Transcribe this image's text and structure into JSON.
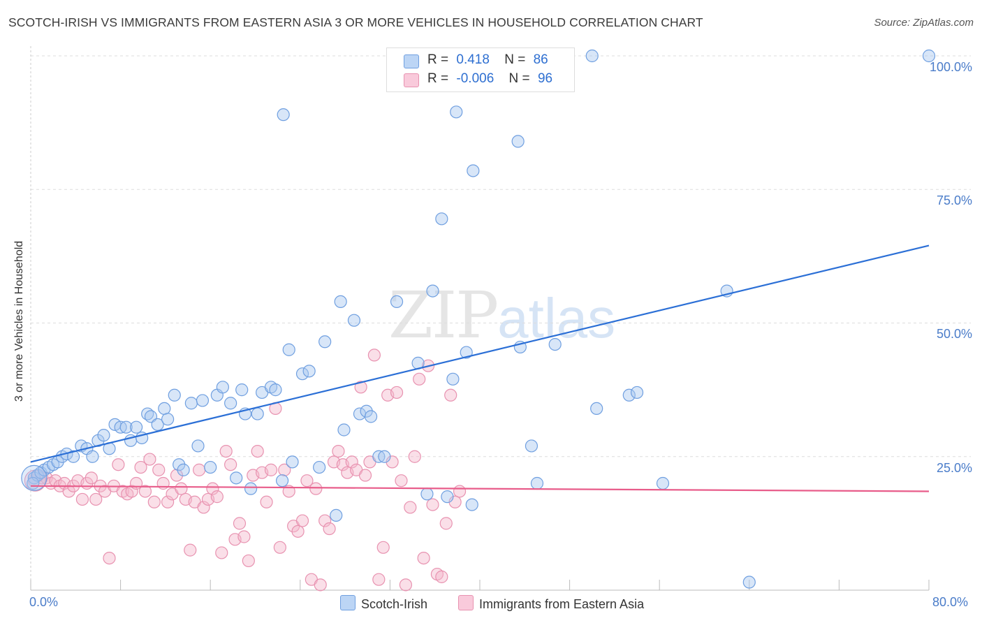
{
  "header": {
    "title": "SCOTCH-IRISH VS IMMIGRANTS FROM EASTERN ASIA 3 OR MORE VEHICLES IN HOUSEHOLD CORRELATION CHART",
    "source": "Source: ZipAtlas.com"
  },
  "watermark": {
    "zip": "ZIP",
    "atlas": "atlas"
  },
  "legend": {
    "rows": [
      {
        "r_label": "R =",
        "r_value": "0.418",
        "n_label": "N =",
        "n_value": "86"
      },
      {
        "r_label": "R =",
        "r_value": "-0.006",
        "n_label": "N =",
        "n_value": "96"
      }
    ]
  },
  "bottom_legend": {
    "series1": "Scotch-Irish",
    "series2": "Immigrants from Eastern Asia"
  },
  "colors": {
    "blue_fill": "#a9c8f0",
    "blue_stroke": "#6f9fe0",
    "blue_line": "#2b6fd6",
    "pink_fill": "#f5b8cc",
    "pink_stroke": "#e892b0",
    "pink_line": "#e85c8a",
    "grid": "#dddddd",
    "tick_text": "#4a7cc9"
  },
  "chart_data": {
    "type": "scatter",
    "title": "SCOTCH-IRISH VS IMMIGRANTS FROM EASTERN ASIA 3 OR MORE VEHICLES IN HOUSEHOLD CORRELATION CHART",
    "xlabel": "",
    "ylabel": "3 or more Vehicles in Household",
    "xlim": [
      0,
      80
    ],
    "ylim": [
      0,
      100
    ],
    "x_tick_labels": [
      "0.0%",
      "80.0%"
    ],
    "y_tick_labels": [
      "25.0%",
      "50.0%",
      "75.0%",
      "100.0%"
    ],
    "y_ticks": [
      25,
      50,
      75,
      100
    ],
    "grid": true,
    "legend_position": "top-center",
    "series": [
      {
        "name": "Scotch-Irish",
        "R": 0.418,
        "N": 86,
        "trend": [
          [
            0,
            24.0
          ],
          [
            80,
            64.5
          ]
        ],
        "points": [
          [
            0.3,
            21.0
          ],
          [
            0.6,
            21.5
          ],
          [
            0.9,
            22.0
          ],
          [
            1.2,
            22.5
          ],
          [
            1.6,
            23.0
          ],
          [
            2.0,
            23.5
          ],
          [
            2.4,
            24.0
          ],
          [
            2.8,
            25.0
          ],
          [
            3.2,
            25.5
          ],
          [
            3.8,
            25.0
          ],
          [
            4.5,
            27.0
          ],
          [
            5.0,
            26.5
          ],
          [
            5.5,
            25.0
          ],
          [
            6.0,
            28.0
          ],
          [
            6.5,
            29.0
          ],
          [
            7.0,
            26.5
          ],
          [
            7.5,
            31.0
          ],
          [
            8.0,
            30.5
          ],
          [
            8.5,
            30.5
          ],
          [
            8.9,
            28.0
          ],
          [
            9.4,
            30.5
          ],
          [
            9.9,
            28.5
          ],
          [
            10.4,
            33.0
          ],
          [
            10.7,
            32.5
          ],
          [
            11.3,
            31.0
          ],
          [
            11.9,
            34.0
          ],
          [
            12.2,
            32.0
          ],
          [
            12.8,
            36.5
          ],
          [
            13.2,
            23.5
          ],
          [
            13.6,
            22.5
          ],
          [
            14.3,
            35.0
          ],
          [
            14.9,
            27.0
          ],
          [
            15.3,
            35.5
          ],
          [
            16.0,
            23.0
          ],
          [
            16.6,
            36.5
          ],
          [
            17.1,
            38.0
          ],
          [
            17.8,
            35.0
          ],
          [
            18.3,
            21.0
          ],
          [
            18.8,
            37.5
          ],
          [
            19.1,
            33.0
          ],
          [
            19.6,
            19.0
          ],
          [
            20.2,
            33.0
          ],
          [
            20.6,
            37.0
          ],
          [
            21.4,
            38.0
          ],
          [
            21.8,
            37.5
          ],
          [
            22.4,
            20.5
          ],
          [
            23.3,
            24.0
          ],
          [
            22.5,
            89.0
          ],
          [
            23.0,
            45.0
          ],
          [
            24.2,
            40.5
          ],
          [
            24.8,
            41.0
          ],
          [
            25.7,
            23.0
          ],
          [
            26.2,
            46.5
          ],
          [
            27.2,
            14.0
          ],
          [
            27.6,
            54.0
          ],
          [
            27.9,
            30.0
          ],
          [
            28.8,
            50.5
          ],
          [
            29.3,
            33.0
          ],
          [
            29.9,
            33.5
          ],
          [
            30.3,
            32.5
          ],
          [
            31.0,
            25.0
          ],
          [
            31.5,
            25.0
          ],
          [
            32.6,
            54.0
          ],
          [
            34.5,
            42.5
          ],
          [
            35.3,
            18.0
          ],
          [
            35.8,
            56.0
          ],
          [
            36.6,
            69.5
          ],
          [
            37.1,
            17.5
          ],
          [
            37.6,
            39.5
          ],
          [
            37.9,
            89.5
          ],
          [
            38.8,
            44.5
          ],
          [
            39.3,
            16.0
          ],
          [
            39.4,
            78.5
          ],
          [
            43.4,
            84.0
          ],
          [
            43.6,
            45.5
          ],
          [
            44.6,
            27.0
          ],
          [
            45.1,
            20.0
          ],
          [
            46.7,
            46.0
          ],
          [
            50.4,
            34.0
          ],
          [
            50.0,
            100.0
          ],
          [
            53.3,
            36.5
          ],
          [
            54.0,
            37.0
          ],
          [
            56.3,
            20.0
          ],
          [
            62.0,
            56.0
          ],
          [
            64.0,
            1.5
          ],
          [
            80.0,
            100.0
          ],
          [
            0.2,
            20.0
          ]
        ],
        "point_sizes_note": "mostly uniform; one large marker near origin"
      },
      {
        "name": "Immigrants from Eastern Asia",
        "R": -0.006,
        "N": 96,
        "trend": [
          [
            0,
            19.5
          ],
          [
            80,
            18.5
          ]
        ],
        "points": [
          [
            0.3,
            20.5
          ],
          [
            0.7,
            21.5
          ],
          [
            1.0,
            21.0
          ],
          [
            1.4,
            21.0
          ],
          [
            1.8,
            20.0
          ],
          [
            2.2,
            20.5
          ],
          [
            2.6,
            19.5
          ],
          [
            3.0,
            20.0
          ],
          [
            3.4,
            18.5
          ],
          [
            3.8,
            19.5
          ],
          [
            4.2,
            20.5
          ],
          [
            4.6,
            17.0
          ],
          [
            5.0,
            20.0
          ],
          [
            5.4,
            21.0
          ],
          [
            5.8,
            17.0
          ],
          [
            6.2,
            19.5
          ],
          [
            6.6,
            18.5
          ],
          [
            7.0,
            6.0
          ],
          [
            7.4,
            19.5
          ],
          [
            7.8,
            23.5
          ],
          [
            8.2,
            18.5
          ],
          [
            8.6,
            18.0
          ],
          [
            9.0,
            18.5
          ],
          [
            9.4,
            20.0
          ],
          [
            9.8,
            23.0
          ],
          [
            10.2,
            18.5
          ],
          [
            10.6,
            24.5
          ],
          [
            11.0,
            16.5
          ],
          [
            11.4,
            22.5
          ],
          [
            11.8,
            20.0
          ],
          [
            12.2,
            16.5
          ],
          [
            12.6,
            18.0
          ],
          [
            13.0,
            21.5
          ],
          [
            13.4,
            19.0
          ],
          [
            13.8,
            17.0
          ],
          [
            14.2,
            7.5
          ],
          [
            14.6,
            16.5
          ],
          [
            15.0,
            22.5
          ],
          [
            15.4,
            15.5
          ],
          [
            15.8,
            17.0
          ],
          [
            16.2,
            19.0
          ],
          [
            16.6,
            17.5
          ],
          [
            17.0,
            7.0
          ],
          [
            17.4,
            26.0
          ],
          [
            17.8,
            23.5
          ],
          [
            18.2,
            9.5
          ],
          [
            18.6,
            12.5
          ],
          [
            19.0,
            10.0
          ],
          [
            19.4,
            5.5
          ],
          [
            19.8,
            21.5
          ],
          [
            20.2,
            26.0
          ],
          [
            20.6,
            22.0
          ],
          [
            21.0,
            16.5
          ],
          [
            21.4,
            22.5
          ],
          [
            21.8,
            34.0
          ],
          [
            22.2,
            8.0
          ],
          [
            22.6,
            22.5
          ],
          [
            23.0,
            18.5
          ],
          [
            23.4,
            12.0
          ],
          [
            23.8,
            11.0
          ],
          [
            24.2,
            13.0
          ],
          [
            24.6,
            20.5
          ],
          [
            25.0,
            2.0
          ],
          [
            25.4,
            19.0
          ],
          [
            25.8,
            1.0
          ],
          [
            26.2,
            13.0
          ],
          [
            26.6,
            11.5
          ],
          [
            27.0,
            24.0
          ],
          [
            27.4,
            26.0
          ],
          [
            27.8,
            23.5
          ],
          [
            28.2,
            22.0
          ],
          [
            28.6,
            24.0
          ],
          [
            29.0,
            22.5
          ],
          [
            29.4,
            38.0
          ],
          [
            29.8,
            21.5
          ],
          [
            30.2,
            24.0
          ],
          [
            30.6,
            44.0
          ],
          [
            31.0,
            2.0
          ],
          [
            31.4,
            8.0
          ],
          [
            31.8,
            36.5
          ],
          [
            32.2,
            24.0
          ],
          [
            32.6,
            37.0
          ],
          [
            33.0,
            20.5
          ],
          [
            33.4,
            1.0
          ],
          [
            33.8,
            15.5
          ],
          [
            34.2,
            25.0
          ],
          [
            34.6,
            39.5
          ],
          [
            35.0,
            6.0
          ],
          [
            35.4,
            42.0
          ],
          [
            35.8,
            16.0
          ],
          [
            36.2,
            3.0
          ],
          [
            36.6,
            2.5
          ],
          [
            37.0,
            12.5
          ],
          [
            37.4,
            36.5
          ],
          [
            37.8,
            16.5
          ],
          [
            38.2,
            18.5
          ]
        ]
      }
    ]
  }
}
